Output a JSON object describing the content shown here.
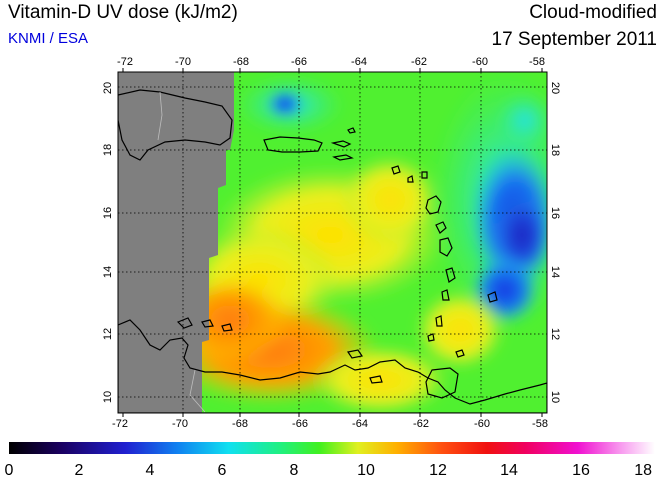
{
  "header": {
    "title": "Vitamin-D UV dose (kJ/m2)",
    "source": "KNMI / ESA",
    "mode": "Cloud-modified",
    "date": "17 September 2011"
  },
  "colors": {
    "source_text": "#0000dd",
    "no_data": "#7f7f7f"
  },
  "map": {
    "lon_ticks": [
      "-72",
      "-70",
      "-68",
      "-66",
      "-64",
      "-62",
      "-60",
      "-58"
    ],
    "lat_ticks": [
      "10",
      "12",
      "14",
      "16",
      "18",
      "20"
    ],
    "lon_range": [
      -72,
      -58
    ],
    "lat_range": [
      9.5,
      20.5
    ],
    "gridlines": "dotted"
  },
  "colorbar": {
    "labels": [
      "0",
      "2",
      "4",
      "6",
      "8",
      "10",
      "12",
      "14",
      "16",
      "18"
    ],
    "range": [
      0,
      18
    ]
  }
}
